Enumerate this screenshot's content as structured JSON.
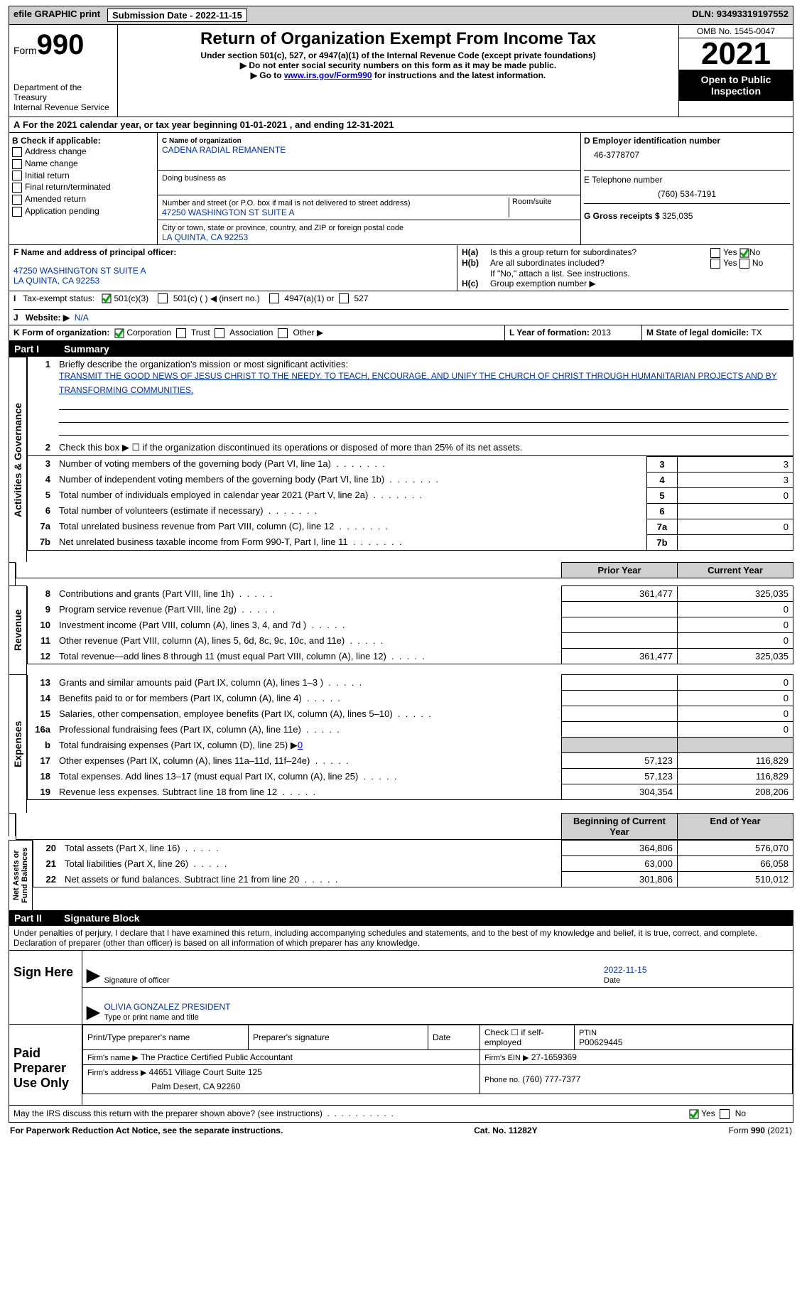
{
  "top": {
    "efile": "efile GRAPHIC print",
    "subdate_lbl": "Submission Date - ",
    "subdate": "2022-11-15",
    "dln_lbl": "DLN: ",
    "dln": "93493319197552"
  },
  "hdr": {
    "form": "Form",
    "n": "990",
    "title": "Return of Organization Exempt From Income Tax",
    "sub1": "Under section 501(c), 527, or 4947(a)(1) of the Internal Revenue Code (except private foundations)",
    "sub2": "▶ Do not enter social security numbers on this form as it may be made public.",
    "sub3a": "▶ Go to ",
    "sub3link": "www.irs.gov/Form990",
    "sub3b": " for instructions and the latest information.",
    "dept": "Department of the Treasury",
    "irs": "Internal Revenue Service",
    "omb_lbl": "OMB No. ",
    "omb": "1545-0047",
    "yr": "2021",
    "open": "Open to Public Inspection"
  },
  "A": {
    "txt": "For the 2021 calendar year, or tax year beginning ",
    "d1": "01-01-2021",
    "mid": "   , and ending ",
    "d2": "12-31-2021"
  },
  "B": {
    "hdr": "B Check if applicable:",
    "items": [
      "Address change",
      "Name change",
      "Initial return",
      "Final return/terminated",
      "Amended return",
      "Application pending"
    ]
  },
  "C": {
    "name_lbl": "C Name of organization",
    "name": "CADENA RADIAL REMANENTE",
    "dba": "Doing business as",
    "addr_lbl": "Number and street (or P.O. box if mail is not delivered to street address)",
    "room": "Room/suite",
    "addr": "47250 WASHINGTON ST SUITE A",
    "city_lbl": "City or town, state or province, country, and ZIP or foreign postal code",
    "city": "LA QUINTA, CA  92253"
  },
  "D": {
    "lbl": "D Employer identification number",
    "val": "46-3778707"
  },
  "E": {
    "lbl": "E Telephone number",
    "val": "(760) 534-7191"
  },
  "G": {
    "lbl": "G Gross receipts $ ",
    "val": "325,035"
  },
  "F": {
    "lbl": "F  Name and address of principal officer:",
    "l1": "47250 WASHINGTON ST SUITE A",
    "l2": "LA QUINTA, CA  92253"
  },
  "H": {
    "a": "Is this a group return for subordinates?",
    "b": "Are all subordinates included?",
    "bnote": "If \"No,\" attach a list. See instructions.",
    "c": "Group exemption number ▶"
  },
  "I": {
    "lbl": "Tax-exempt status:",
    "o1": "501(c)(3)",
    "o2": "501(c) (   ) ◀ (insert no.)",
    "o3": "4947(a)(1) or",
    "o4": "527"
  },
  "J": {
    "lbl": "Website: ▶",
    "val": "N/A"
  },
  "K": {
    "lbl": "K Form of organization:",
    "o": [
      "Corporation",
      "Trust",
      "Association",
      "Other ▶"
    ]
  },
  "L": {
    "lbl": "L Year of formation: ",
    "val": "2013"
  },
  "M": {
    "lbl": "M State of legal domicile: ",
    "val": "TX"
  },
  "part1": {
    "bar": "Summary",
    "s1": {
      "ag": "Activities & Governance",
      "rev": "Revenue",
      "exp": "Expenses",
      "na": "Net Assets or Fund Balances"
    },
    "l1": "Briefly describe the organization's mission or most significant activities:",
    "mission": "TRANSMIT THE GOOD NEWS OF JESUS CHRIST TO THE NEEDY. TO TEACH, ENCOURAGE, AND UNIFY THE CHURCH OF CHRIST THROUGH HUMANITARIAN PROJECTS AND BY TRANSFORMING COMMUNITIES.",
    "l2": "Check this box ▶ ☐ if the organization discontinued its operations or disposed of more than 25% of its net assets.",
    "rows1": [
      {
        "n": "3",
        "t": "Number of voting members of the governing body (Part VI, line 1a)",
        "v": "3"
      },
      {
        "n": "4",
        "t": "Number of independent voting members of the governing body (Part VI, line 1b)",
        "v": "3"
      },
      {
        "n": "5",
        "t": "Total number of individuals employed in calendar year 2021 (Part V, line 2a)",
        "v": "0"
      },
      {
        "n": "6",
        "t": "Total number of volunteers (estimate if necessary)",
        "v": ""
      },
      {
        "n": "7a",
        "t": "Total unrelated business revenue from Part VIII, column (C), line 12",
        "v": "0"
      },
      {
        "n": "7b",
        "t": "Net unrelated business taxable income from Form 990-T, Part I, line 11",
        "v": ""
      }
    ],
    "py": "Prior Year",
    "cy": "Current Year",
    "rows2": [
      {
        "n": "8",
        "t": "Contributions and grants (Part VIII, line 1h)",
        "p": "361,477",
        "c": "325,035"
      },
      {
        "n": "9",
        "t": "Program service revenue (Part VIII, line 2g)",
        "p": "",
        "c": "0"
      },
      {
        "n": "10",
        "t": "Investment income (Part VIII, column (A), lines 3, 4, and 7d )",
        "p": "",
        "c": "0"
      },
      {
        "n": "11",
        "t": "Other revenue (Part VIII, column (A), lines 5, 6d, 8c, 9c, 10c, and 11e)",
        "p": "",
        "c": "0"
      },
      {
        "n": "12",
        "t": "Total revenue—add lines 8 through 11 (must equal Part VIII, column (A), line 12)",
        "p": "361,477",
        "c": "325,035"
      }
    ],
    "rows3": [
      {
        "n": "13",
        "t": "Grants and similar amounts paid (Part IX, column (A), lines 1–3 )",
        "p": "",
        "c": "0"
      },
      {
        "n": "14",
        "t": "Benefits paid to or for members (Part IX, column (A), line 4)",
        "p": "",
        "c": "0"
      },
      {
        "n": "15",
        "t": "Salaries, other compensation, employee benefits (Part IX, column (A), lines 5–10)",
        "p": "",
        "c": "0"
      },
      {
        "n": "16a",
        "t": "Professional fundraising fees (Part IX, column (A), line 11e)",
        "p": "",
        "c": "0"
      },
      {
        "n": "b",
        "t": "Total fundraising expenses (Part IX, column (D), line 25) ▶",
        "p": "grey",
        "c": "grey",
        "fund": "0"
      },
      {
        "n": "17",
        "t": "Other expenses (Part IX, column (A), lines 11a–11d, 11f–24e)",
        "p": "57,123",
        "c": "116,829"
      },
      {
        "n": "18",
        "t": "Total expenses. Add lines 13–17 (must equal Part IX, column (A), line 25)",
        "p": "57,123",
        "c": "116,829"
      },
      {
        "n": "19",
        "t": "Revenue less expenses. Subtract line 18 from line 12",
        "p": "304,354",
        "c": "208,206"
      }
    ],
    "by": "Beginning of Current Year",
    "ey": "End of Year",
    "rows4": [
      {
        "n": "20",
        "t": "Total assets (Part X, line 16)",
        "p": "364,806",
        "c": "576,070"
      },
      {
        "n": "21",
        "t": "Total liabilities (Part X, line 26)",
        "p": "63,000",
        "c": "66,058"
      },
      {
        "n": "22",
        "t": "Net assets or fund balances. Subtract line 21 from line 20",
        "p": "301,806",
        "c": "510,012"
      }
    ]
  },
  "part2": {
    "bar": "Signature Block",
    "pen": "Under penalties of perjury, I declare that I have examined this return, including accompanying schedules and statements, and to the best of my knowledge and belief, it is true, correct, and complete. Declaration of preparer (other than officer) is based on all information of which preparer has any knowledge.",
    "sign": "Sign Here",
    "sig_lbl": "Signature of officer",
    "date_lbl": "Date",
    "date": "2022-11-15",
    "name": "OLIVIA GONZALEZ  President",
    "name_lbl": "Type or print name and title",
    "paid": "Paid Preparer Use Only",
    "h": [
      "Print/Type preparer's name",
      "Preparer's signature",
      "Date"
    ],
    "check": "Check ☐ if self-employed",
    "ptin_lbl": "PTIN",
    "ptin": "P00629445",
    "firm_lbl": "Firm's name      ▶",
    "firm": "The Practice Certified Public Accountant",
    "ein_lbl": "Firm's EIN ▶",
    "ein": "27-1659369",
    "faddr_lbl": "Firm's address ▶",
    "faddr1": "44651 Village Court Suite 125",
    "faddr2": "Palm Desert, CA  92260",
    "phone_lbl": "Phone no. ",
    "phone": "(760) 777-7377",
    "may": "May the IRS discuss this return with the preparer shown above? (see instructions)"
  },
  "ftr": {
    "l": "For Paperwork Reduction Act Notice, see the separate instructions.",
    "c": "Cat. No. 11282Y",
    "r": "Form 990 (2021)"
  },
  "yn": {
    "y": "Yes",
    "n": "No"
  }
}
